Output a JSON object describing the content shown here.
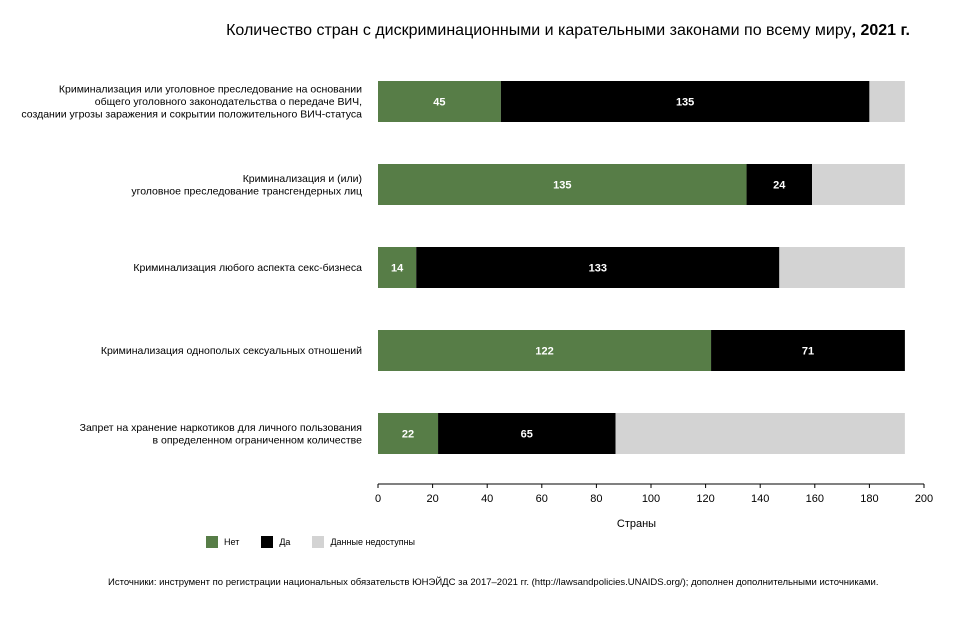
{
  "title": {
    "main": "Количество стран с дискриминационными и карательными законами по всему миру",
    "year": ", 2021 г."
  },
  "chart_data": {
    "type": "bar",
    "orientation": "horizontal",
    "stacked": true,
    "categories": [
      [
        "Криминализация или уголовное преследование на основании",
        "общего уголовного законодательства о передаче ВИЧ,",
        "создании угрозы заражения и сокрытии положительного ВИЧ-статуса"
      ],
      [
        "Криминализация и (или)",
        "уголовное преследование трансгендерных лиц"
      ],
      [
        "Криминализация любого аспекта секс-бизнеса"
      ],
      [
        "Криминализация однополых сексуальных отношений"
      ],
      [
        "Запрет на хранение наркотиков для личного пользования",
        "в определенном ограниченном количестве"
      ]
    ],
    "series": [
      {
        "name": "Нет",
        "color": "#577d47",
        "values": [
          45,
          135,
          14,
          122,
          22
        ]
      },
      {
        "name": "Да",
        "color": "#000000",
        "values": [
          135,
          24,
          133,
          71,
          65
        ]
      },
      {
        "name": "Данные недоступны",
        "color": "#d3d3d3",
        "values": [
          13,
          34,
          46,
          0,
          106
        ]
      }
    ],
    "xlabel": "Страны",
    "xlim": [
      0,
      200
    ],
    "xticks": [
      0,
      20,
      40,
      60,
      80,
      100,
      120,
      140,
      160,
      180,
      200
    ],
    "grid": false,
    "legend_position": "bottom-left"
  },
  "source": "Источники: инструмент по регистрации национальных обязательств ЮНЭЙДС за 2017–2021 гг. (http://lawsandpolicies.UNAIDS.org/); дополнен дополнительными источниками."
}
